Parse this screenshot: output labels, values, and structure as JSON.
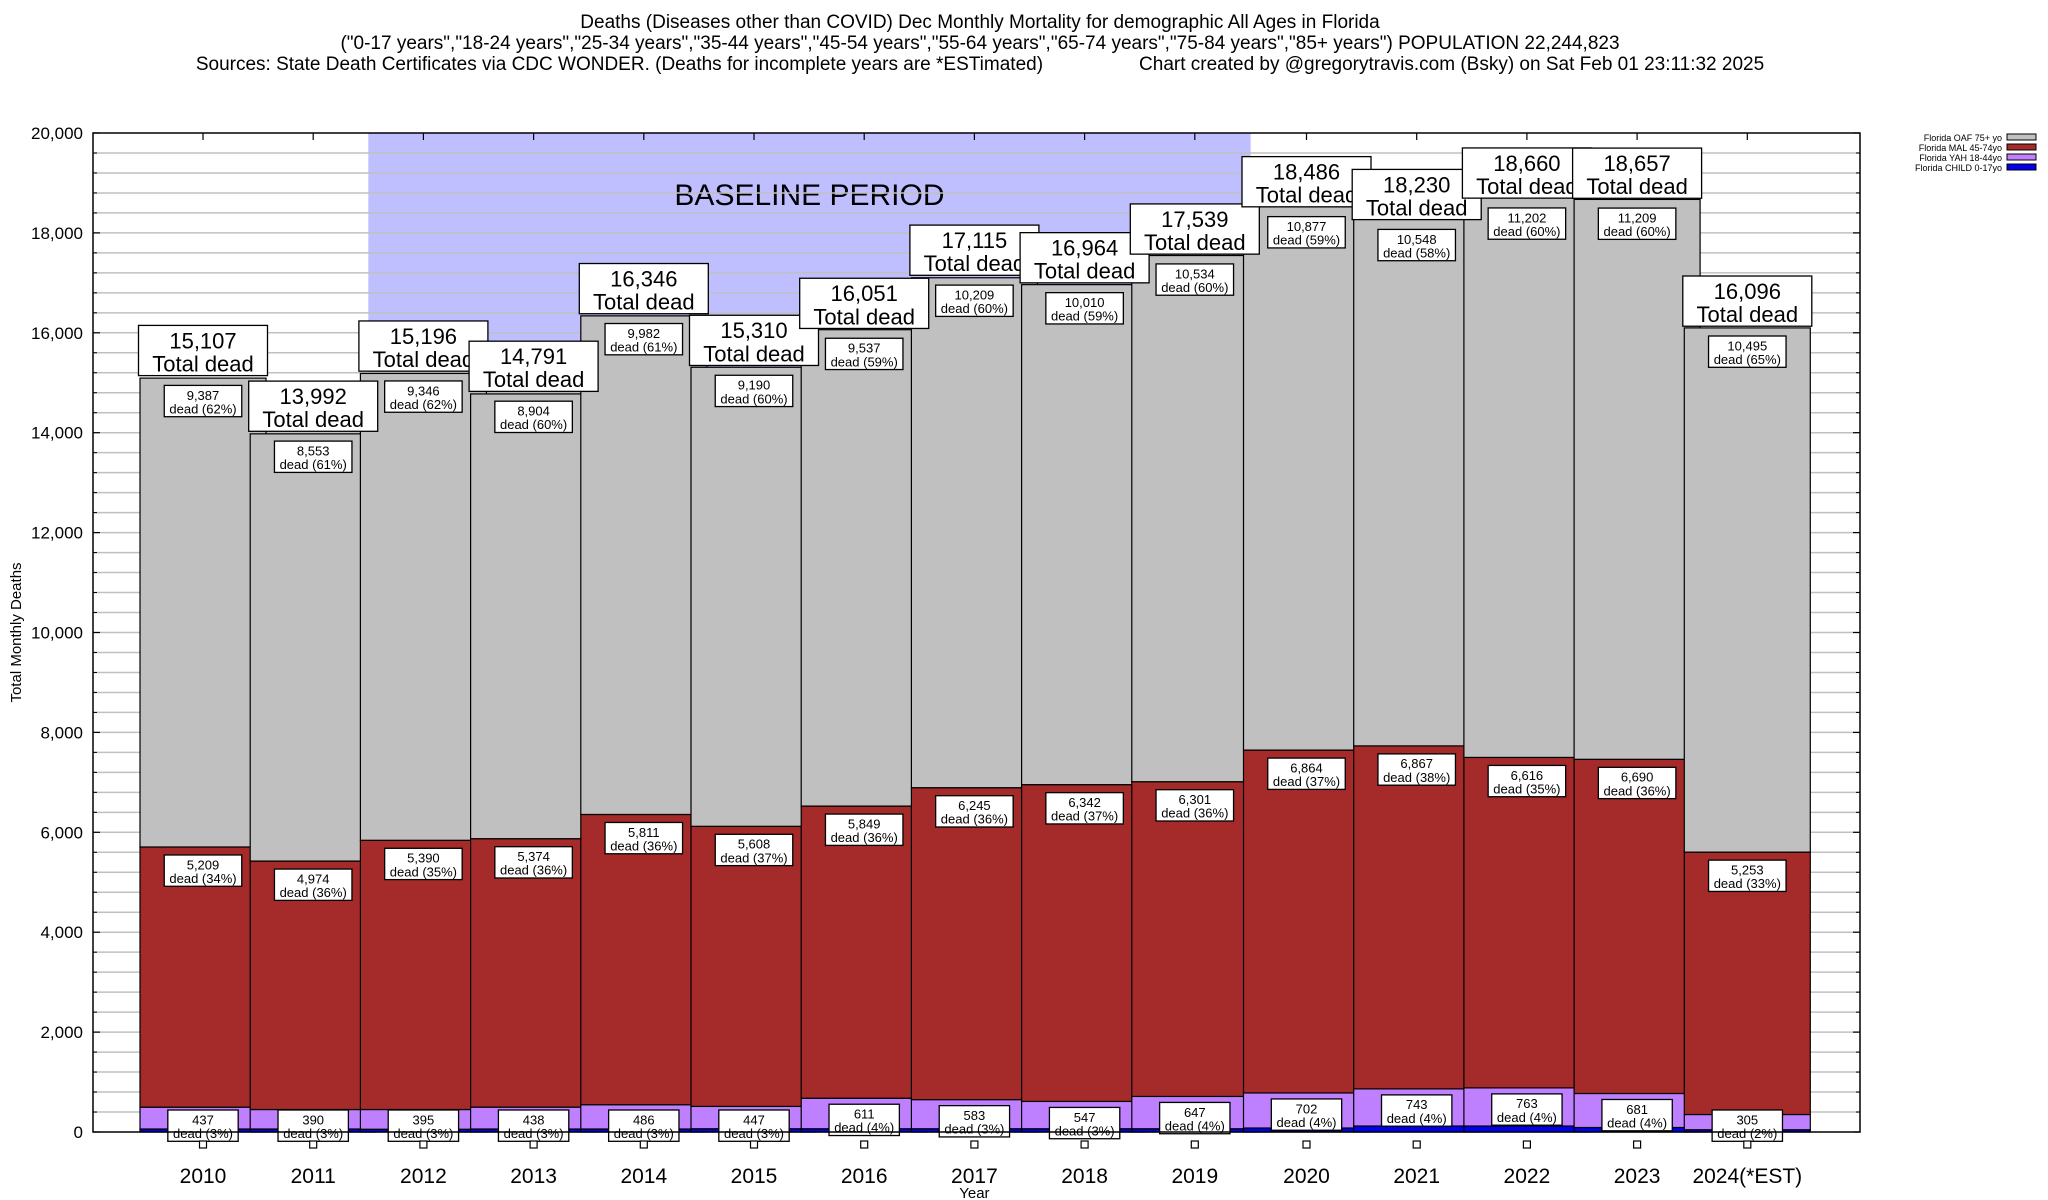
{
  "chart_data": {
    "type": "bar",
    "stacked": true,
    "title": "Deaths (Diseases other than COVID) Dec Monthly Mortality for demographic All Ages in Florida",
    "subtitle": "(\"0-17 years\",\"18-24 years\",\"25-34 years\",\"35-44 years\",\"45-54 years\",\"55-64 years\",\"65-74 years\",\"75-84 years\",\"85+ years\") POPULATION 22,244,823",
    "sources": "Sources: State Death Certificates via CDC WONDER. (Deaths for incomplete years are *ESTimated)",
    "credit": "Chart created by @gregorytravis.com (Bsky) on Sat Feb 01 23:11:32 2025",
    "xlabel": "Year",
    "ylabel": "Total Monthly Deaths",
    "ylim": [
      0,
      20000
    ],
    "yticks": [
      0,
      2000,
      4000,
      6000,
      8000,
      10000,
      12000,
      14000,
      16000,
      18000,
      20000
    ],
    "ytick_labels": [
      "0",
      "2,000",
      "4,000",
      "6,000",
      "8,000",
      "10,000",
      "12,000",
      "14,000",
      "16,000",
      "18,000",
      "20,000"
    ],
    "minor_grid_step": 400,
    "grid": true,
    "legend_position": "top-right",
    "annotation": "BASELINE PERIOD",
    "baseline_range": [
      "2012",
      "2019"
    ],
    "total_suffix": "Total dead",
    "dead_prefix": "dead",
    "categories": [
      "2010",
      "2011",
      "2012",
      "2013",
      "2014",
      "2015",
      "2016",
      "2017",
      "2018",
      "2019",
      "2020",
      "2021",
      "2022",
      "2023",
      "2024(*EST)"
    ],
    "totals": [
      15107,
      13992,
      15196,
      14791,
      16346,
      15310,
      16051,
      17115,
      16964,
      17539,
      18486,
      18230,
      18660,
      18657,
      16096
    ],
    "total_labels": [
      "15,107",
      "13,992",
      "15,196",
      "14,791",
      "16,346",
      "15,310",
      "16,051",
      "17,115",
      "16,964",
      "17,539",
      "18,486",
      "18,230",
      "18,660",
      "18,657",
      "16,096"
    ],
    "series": [
      {
        "name": "Florida CHILD 0-17yo",
        "color": "#0000ee",
        "values": [
          60,
          60,
          55,
          60,
          60,
          65,
          65,
          65,
          65,
          65,
          80,
          120,
          120,
          90,
          45
        ],
        "labels": [],
        "pcts": []
      },
      {
        "name": "Florida YAH 18-44yo",
        "color": "#bf80ff",
        "values": [
          437,
          390,
          395,
          438,
          486,
          447,
          611,
          583,
          547,
          647,
          702,
          743,
          763,
          681,
          305
        ],
        "labels": [
          "437",
          "390",
          "395",
          "438",
          "486",
          "447",
          "611",
          "583",
          "547",
          "647",
          "702",
          "743",
          "763",
          "681",
          "305"
        ],
        "pcts": [
          "3%",
          "3%",
          "3%",
          "3%",
          "3%",
          "3%",
          "4%",
          "3%",
          "3%",
          "4%",
          "4%",
          "4%",
          "4%",
          "4%",
          "2%"
        ]
      },
      {
        "name": "Florida MAL 45-74yo",
        "color": "#a52a2a",
        "values": [
          5209,
          4974,
          5390,
          5374,
          5811,
          5608,
          5849,
          6245,
          6342,
          6301,
          6864,
          6867,
          6616,
          6690,
          5253
        ],
        "labels": [
          "5,209",
          "4,974",
          "5,390",
          "5,374",
          "5,811",
          "5,608",
          "5,849",
          "6,245",
          "6,342",
          "6,301",
          "6,864",
          "6,867",
          "6,616",
          "6,690",
          "5,253"
        ],
        "pcts": [
          "34%",
          "36%",
          "35%",
          "36%",
          "36%",
          "37%",
          "36%",
          "36%",
          "37%",
          "36%",
          "37%",
          "38%",
          "35%",
          "36%",
          "33%"
        ]
      },
      {
        "name": "Florida OAF 75+ yo",
        "color": "#c0c0c0",
        "values": [
          9387,
          8553,
          9346,
          8904,
          9982,
          9190,
          9537,
          10209,
          10010,
          10534,
          10877,
          10548,
          11202,
          11209,
          10495
        ],
        "labels": [
          "9,387",
          "8,553",
          "9,346",
          "8,904",
          "9,982",
          "9,190",
          "9,537",
          "10,209",
          "10,010",
          "10,534",
          "10,877",
          "10,548",
          "11,202",
          "11,209",
          "10,495"
        ],
        "pcts": [
          "62%",
          "61%",
          "62%",
          "60%",
          "61%",
          "60%",
          "59%",
          "60%",
          "59%",
          "60%",
          "59%",
          "58%",
          "60%",
          "60%",
          "65%"
        ]
      }
    ],
    "colors": {
      "baseline_shade": "#bfbfff",
      "grid": "#c0c0c0",
      "axis": "#000000"
    }
  }
}
